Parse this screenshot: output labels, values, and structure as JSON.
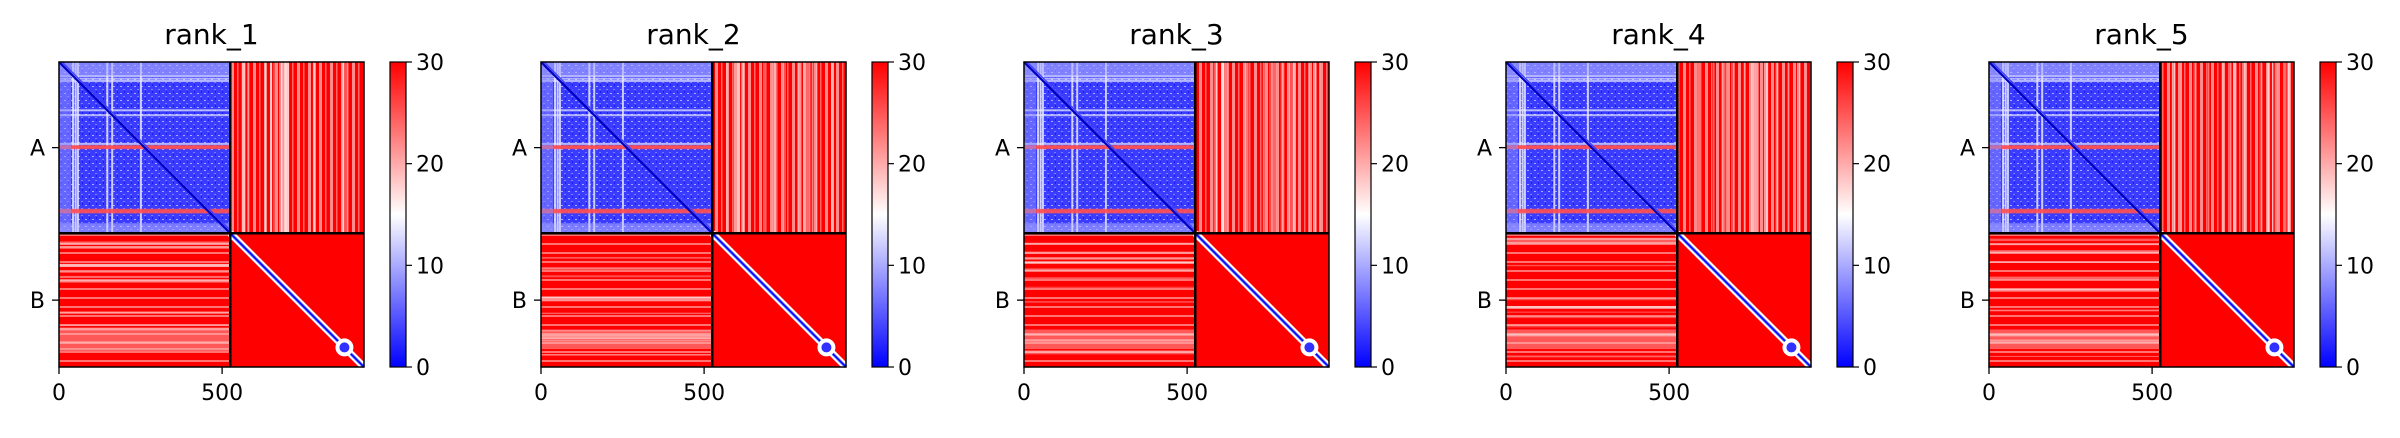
{
  "chart_data": {
    "type": "heatmap",
    "description_of_layout": "",
    "panels": [
      {
        "title": "rank_1"
      },
      {
        "title": "rank_2"
      },
      {
        "title": "rank_3"
      },
      {
        "title": "rank_4"
      },
      {
        "title": "rank_5"
      }
    ],
    "x_ticks": [
      0,
      500
    ],
    "x_lim": [
      0,
      935
    ],
    "y_lim": [
      0,
      935
    ],
    "chain_boundary": 525,
    "chains": [
      {
        "label": "A",
        "start": 0,
        "end": 525
      },
      {
        "label": "B",
        "start": 525,
        "end": 935
      }
    ],
    "colorbar": {
      "min": 0,
      "max": 30,
      "ticks": [
        0,
        10,
        20,
        30
      ],
      "colors": [
        "#0000ff",
        "#ffffff",
        "#ff0000"
      ]
    },
    "grid": false
  }
}
